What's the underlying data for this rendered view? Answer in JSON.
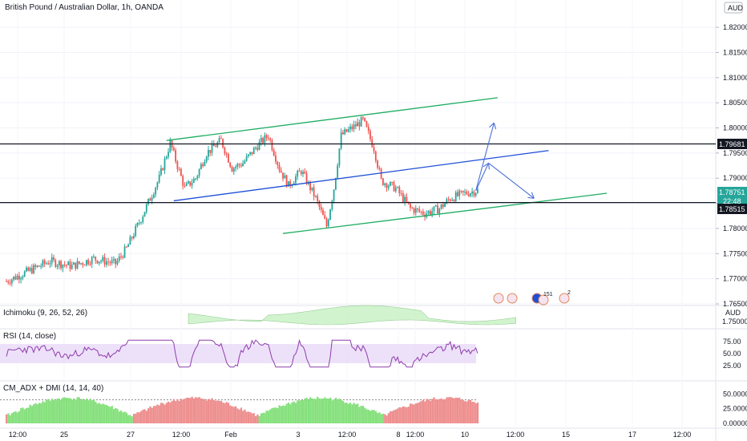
{
  "colors": {
    "up": "#26a69a",
    "down": "#ef5350",
    "channel_green": "#1ead62",
    "channel_blue": "#1e4fd6",
    "arrow": "#4a6fd8",
    "horizontal": "#131722",
    "rsi": "#8e3cac",
    "rsi_band": "#e6d4f7",
    "adx_green": "#85e07c",
    "adx_red": "#ee8e8e",
    "ichimoku_green": "#c6f2c4",
    "ichimoku_red": "#f7c7c7"
  },
  "header": {
    "title": "British Pound / Australian Dollar, 1h, OANDA"
  },
  "currency_badge": "AUD",
  "price_labels": {
    "level_high": "1.79681",
    "current": "1.78751",
    "countdown": "22:48",
    "level_low": "1.78515"
  },
  "panes": {
    "ichimoku": {
      "label": "Ichimoku (9, 26, 52, 26)",
      "badge": "AUD",
      "axis": "1.75000"
    },
    "rsi": {
      "label": "RSI (14, close)"
    },
    "adx": {
      "label": "CM_ADX + DMI (14, 14, 40)"
    }
  },
  "event_markers": {
    "flag_count": "151",
    "other_count": "2"
  },
  "chart_data": [
    {
      "type": "candlestick",
      "title": "British Pound / Australian Dollar, 1h, OANDA",
      "y_axis": {
        "ticks": [
          "1.82000",
          "1.81500",
          "1.81000",
          "1.80500",
          "1.80000",
          "1.79500",
          "1.79000",
          "1.78500",
          "1.78000",
          "1.77500",
          "1.77000",
          "1.76500"
        ],
        "range": [
          1.765,
          1.824
        ]
      },
      "x_axis": {
        "ticks": [
          "12:00",
          "25",
          "27",
          "12:00",
          "Feb",
          "3",
          "12:00",
          "8",
          "12:00",
          "10",
          "12:00",
          "15",
          "17",
          "12:00"
        ]
      },
      "anchors": [
        {
          "t": 0,
          "p": 1.7695
        },
        {
          "t": 12,
          "p": 1.7715
        },
        {
          "t": 24,
          "p": 1.7735
        },
        {
          "t": 36,
          "p": 1.7725
        },
        {
          "t": 48,
          "p": 1.774
        },
        {
          "t": 60,
          "p": 1.773
        },
        {
          "t": 66,
          "p": 1.776
        },
        {
          "t": 74,
          "p": 1.782
        },
        {
          "t": 84,
          "p": 1.79
        },
        {
          "t": 90,
          "p": 1.797
        },
        {
          "t": 98,
          "p": 1.788
        },
        {
          "t": 104,
          "p": 1.79
        },
        {
          "t": 110,
          "p": 1.795
        },
        {
          "t": 118,
          "p": 1.7975
        },
        {
          "t": 124,
          "p": 1.792
        },
        {
          "t": 130,
          "p": 1.793
        },
        {
          "t": 138,
          "p": 1.7965
        },
        {
          "t": 144,
          "p": 1.7985
        },
        {
          "t": 150,
          "p": 1.792
        },
        {
          "t": 155,
          "p": 1.7885
        },
        {
          "t": 162,
          "p": 1.7915
        },
        {
          "t": 170,
          "p": 1.786
        },
        {
          "t": 176,
          "p": 1.7805
        },
        {
          "t": 180,
          "p": 1.788
        },
        {
          "t": 184,
          "p": 1.7985
        },
        {
          "t": 190,
          "p": 1.8
        },
        {
          "t": 196,
          "p": 1.8015
        },
        {
          "t": 202,
          "p": 1.796
        },
        {
          "t": 206,
          "p": 1.7895
        },
        {
          "t": 214,
          "p": 1.788
        },
        {
          "t": 222,
          "p": 1.784
        },
        {
          "t": 230,
          "p": 1.783
        },
        {
          "t": 238,
          "p": 1.784
        },
        {
          "t": 244,
          "p": 1.786
        },
        {
          "t": 252,
          "p": 1.787
        },
        {
          "t": 258,
          "p": 1.7875
        }
      ],
      "drawings": {
        "upper_channel": [
          [
            88,
            1.7975
          ],
          [
            270,
            1.806
          ]
        ],
        "lower_channel": [
          [
            152,
            1.779
          ],
          [
            330,
            1.787
          ]
        ],
        "mid_channel": [
          [
            92,
            1.7855
          ],
          [
            298,
            1.7955
          ]
        ],
        "horizontal_levels": [
          1.79681,
          1.78515
        ],
        "projection_arrows": [
          [
            [
              258,
              1.7875
            ],
            [
              265,
              1.793
            ]
          ],
          [
            [
              265,
              1.793
            ],
            [
              290,
              1.786
            ]
          ],
          [
            [
              258,
              1.7875
            ],
            [
              268,
              1.801
            ]
          ]
        ]
      }
    },
    {
      "type": "line",
      "name": "RSI (14, close)",
      "y_ticks": [
        "75.00",
        "50.00",
        "25.00"
      ],
      "band": [
        30,
        70
      ]
    },
    {
      "type": "bar",
      "name": "CM_ADX + DMI (14, 14, 40)",
      "y_ticks": [
        "50.00000",
        "25.00000",
        "0.00000"
      ],
      "threshold": 40
    }
  ]
}
